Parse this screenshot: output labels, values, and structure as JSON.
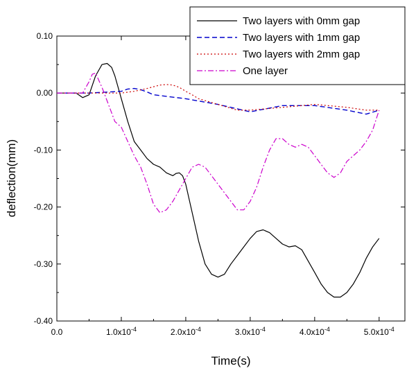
{
  "chart_data": {
    "type": "line",
    "title": "",
    "xlabel": "Time(s)",
    "ylabel": "deflection(mm)",
    "xlim": [
      0,
      0.00054
    ],
    "ylim": [
      -0.4,
      0.1
    ],
    "grid": false,
    "legend_position": "top-right",
    "x_ticks": [
      {
        "value": 0,
        "base": "0.0",
        "exp": ""
      },
      {
        "value": 0.0001,
        "base": "1.0x10",
        "exp": "-4"
      },
      {
        "value": 0.0002,
        "base": "2.0x10",
        "exp": "-4"
      },
      {
        "value": 0.0003,
        "base": "3.0x10",
        "exp": "-4"
      },
      {
        "value": 0.0004,
        "base": "4.0x10",
        "exp": "-4"
      },
      {
        "value": 0.0005,
        "base": "5.0x10",
        "exp": "-4"
      }
    ],
    "y_ticks": [
      {
        "value": 0.1,
        "label": "0.10"
      },
      {
        "value": 0.0,
        "label": "0.00"
      },
      {
        "value": -0.1,
        "label": "-0.10"
      },
      {
        "value": -0.2,
        "label": "-0.20"
      },
      {
        "value": -0.3,
        "label": "-0.30"
      },
      {
        "value": -0.4,
        "label": "-0.40"
      }
    ],
    "series": [
      {
        "name": "Two layers with 0mm gap",
        "color": "#000000",
        "dash": "solid",
        "x": [
          0,
          3e-05,
          4e-05,
          5e-05,
          6e-05,
          7e-05,
          7.8e-05,
          8.5e-05,
          9e-05,
          0.0001,
          0.00011,
          0.00012,
          0.00013,
          0.00014,
          0.00015,
          0.00016,
          0.00017,
          0.00018,
          0.000185,
          0.00019,
          0.000195,
          0.0002,
          0.00021,
          0.00022,
          0.00023,
          0.00024,
          0.00025,
          0.00026,
          0.00027,
          0.00028,
          0.00029,
          0.0003,
          0.00031,
          0.00032,
          0.00033,
          0.00034,
          0.00035,
          0.00036,
          0.00037,
          0.00038,
          0.00039,
          0.0004,
          0.00041,
          0.00042,
          0.00043,
          0.00044,
          0.00045,
          0.00046,
          0.00047,
          0.00048,
          0.00049,
          0.0005
        ],
        "values": [
          0.0,
          0.0,
          -0.008,
          -0.003,
          0.03,
          0.05,
          0.052,
          0.045,
          0.03,
          -0.01,
          -0.05,
          -0.085,
          -0.1,
          -0.115,
          -0.125,
          -0.13,
          -0.14,
          -0.145,
          -0.141,
          -0.14,
          -0.145,
          -0.16,
          -0.21,
          -0.26,
          -0.3,
          -0.318,
          -0.323,
          -0.318,
          -0.3,
          -0.285,
          -0.27,
          -0.255,
          -0.243,
          -0.24,
          -0.245,
          -0.255,
          -0.265,
          -0.27,
          -0.268,
          -0.275,
          -0.295,
          -0.315,
          -0.335,
          -0.35,
          -0.358,
          -0.358,
          -0.35,
          -0.335,
          -0.315,
          -0.29,
          -0.27,
          -0.255
        ]
      },
      {
        "name": "Two layers with 1mm gap",
        "color": "#0000cc",
        "dash": "dashed",
        "x": [
          0,
          5e-05,
          0.0001,
          0.00011,
          0.00012,
          0.00013,
          0.00014,
          0.00015,
          0.0002,
          0.00025,
          0.0003,
          0.00035,
          0.0004,
          0.00045,
          0.00048,
          0.0005
        ],
        "values": [
          0.0,
          0.0,
          0.003,
          0.007,
          0.008,
          0.006,
          0.002,
          -0.003,
          -0.01,
          -0.02,
          -0.033,
          -0.022,
          -0.022,
          -0.03,
          -0.037,
          -0.03
        ]
      },
      {
        "name": "Two layers with 2mm gap",
        "color": "#cc0000",
        "dash": "dotted",
        "x": [
          0,
          5e-05,
          8e-05,
          0.0001,
          0.00012,
          0.00014,
          0.00016,
          0.00017,
          0.00018,
          0.00019,
          0.0002,
          0.00021,
          0.00022,
          0.00025,
          0.00028,
          0.0003,
          0.00035,
          0.0004,
          0.00045,
          0.00048,
          0.0005
        ],
        "values": [
          0.0,
          0.0,
          0.0,
          0.0,
          0.003,
          0.008,
          0.014,
          0.015,
          0.014,
          0.01,
          0.003,
          -0.003,
          -0.01,
          -0.02,
          -0.03,
          -0.03,
          -0.025,
          -0.02,
          -0.025,
          -0.03,
          -0.03
        ]
      },
      {
        "name": "One layer",
        "color": "#cc00cc",
        "dash": "dashdot",
        "x": [
          0,
          4e-05,
          5e-05,
          5.5e-05,
          6e-05,
          7e-05,
          8e-05,
          9e-05,
          0.0001,
          0.00011,
          0.00012,
          0.00013,
          0.00014,
          0.00015,
          0.00016,
          0.00017,
          0.00018,
          0.00019,
          0.0002,
          0.00021,
          0.00022,
          0.00023,
          0.00024,
          0.00025,
          0.00026,
          0.00027,
          0.00028,
          0.00029,
          0.0003,
          0.00031,
          0.00032,
          0.00033,
          0.00034,
          0.00035,
          0.00036,
          0.00037,
          0.00038,
          0.00039,
          0.0004,
          0.00041,
          0.00042,
          0.00043,
          0.00044,
          0.00045,
          0.00046,
          0.00047,
          0.00048,
          0.00049,
          0.0005
        ],
        "values": [
          0.0,
          0.0,
          0.02,
          0.033,
          0.035,
          0.01,
          -0.02,
          -0.05,
          -0.06,
          -0.085,
          -0.11,
          -0.13,
          -0.16,
          -0.195,
          -0.21,
          -0.205,
          -0.19,
          -0.17,
          -0.15,
          -0.13,
          -0.125,
          -0.13,
          -0.145,
          -0.16,
          -0.175,
          -0.19,
          -0.205,
          -0.205,
          -0.19,
          -0.165,
          -0.13,
          -0.1,
          -0.08,
          -0.08,
          -0.09,
          -0.095,
          -0.09,
          -0.095,
          -0.11,
          -0.125,
          -0.14,
          -0.148,
          -0.14,
          -0.12,
          -0.11,
          -0.1,
          -0.085,
          -0.065,
          -0.03
        ]
      }
    ]
  }
}
